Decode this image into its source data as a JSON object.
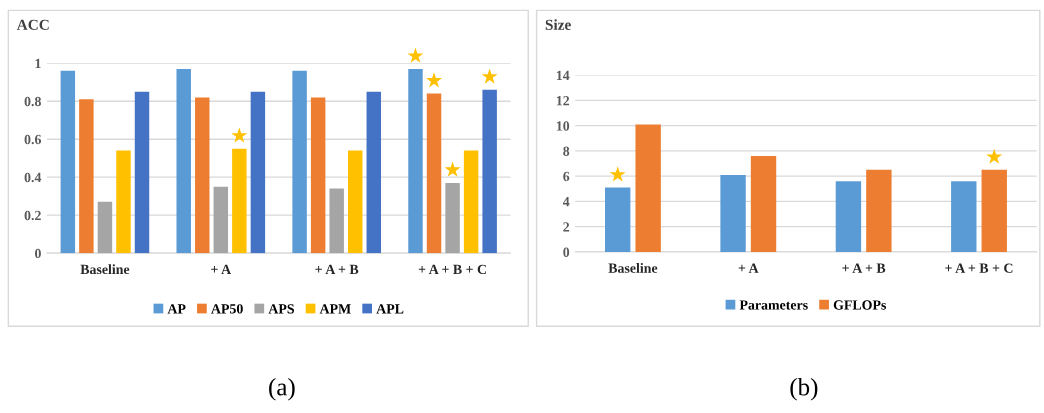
{
  "chart_data": [
    {
      "type": "bar",
      "title": "ACC",
      "categories": [
        "Baseline",
        "+ A",
        "+ A + B",
        "+ A + B + C"
      ],
      "series": [
        {
          "name": "AP",
          "color": "#5b9bd5",
          "values": [
            0.96,
            0.97,
            0.96,
            0.97
          ],
          "value_labels": [
            null,
            null,
            null,
            "★"
          ]
        },
        {
          "name": "AP50",
          "color": "#ed7d31",
          "values": [
            0.81,
            0.82,
            0.82,
            0.84
          ],
          "value_labels": [
            null,
            null,
            null,
            "★"
          ]
        },
        {
          "name": "APS",
          "color": "#a5a5a5",
          "values": [
            0.27,
            0.35,
            0.34,
            0.37
          ],
          "value_labels": [
            null,
            null,
            null,
            "★"
          ]
        },
        {
          "name": "APM",
          "color": "#ffc000",
          "values": [
            0.54,
            0.55,
            0.54,
            0.54
          ],
          "value_labels": [
            null,
            "★",
            null,
            null
          ]
        },
        {
          "name": "APL",
          "color": "#4472c4",
          "values": [
            0.85,
            0.85,
            0.85,
            0.86
          ],
          "value_labels": [
            null,
            null,
            null,
            "★"
          ]
        }
      ],
      "ylim": [
        0,
        1
      ],
      "yticks": [
        0,
        0.2,
        0.4,
        0.6,
        0.8,
        1
      ],
      "grid": "y",
      "legend": "bottom",
      "annotations": [
        "(a)"
      ]
    },
    {
      "type": "bar",
      "title": "Size",
      "categories": [
        "Baseline",
        "+ A",
        "+ A + B",
        "+ A + B + C"
      ],
      "series": [
        {
          "name": "Parameters",
          "color": "#5b9bd5",
          "values": [
            5.1,
            6.1,
            5.6,
            5.6
          ],
          "value_labels": [
            "★",
            null,
            null,
            null
          ]
        },
        {
          "name": "GFLOPs",
          "color": "#ed7d31",
          "values": [
            10.1,
            7.6,
            6.5,
            6.5
          ],
          "value_labels": [
            null,
            null,
            null,
            "★"
          ]
        }
      ],
      "ylim": [
        0,
        14
      ],
      "yticks": [
        0,
        2,
        4,
        6,
        8,
        10,
        12,
        14
      ],
      "grid": "y",
      "legend": "bottom",
      "annotations": [
        "(b)"
      ]
    }
  ]
}
